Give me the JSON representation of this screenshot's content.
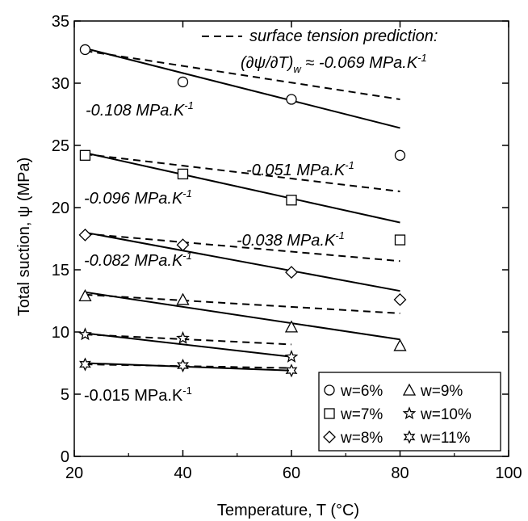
{
  "chart_data": {
    "type": "scatter",
    "xlabel": "Temperature, T (°C)",
    "ylabel": "Total suction, ψ (MPa)",
    "xlim": [
      20,
      100
    ],
    "ylim": [
      0,
      35
    ],
    "xticks": [
      20,
      40,
      60,
      80,
      100
    ],
    "yticks": [
      0,
      5,
      10,
      15,
      20,
      25,
      30,
      35
    ],
    "grid": false,
    "legend_position": "bottom-right",
    "series": [
      {
        "name": "w=6%",
        "marker": "circle",
        "x": [
          22,
          40,
          60,
          80
        ],
        "y": [
          32.7,
          30.1,
          28.7,
          24.2
        ]
      },
      {
        "name": "w=7%",
        "marker": "square",
        "x": [
          22,
          40,
          60,
          80
        ],
        "y": [
          24.2,
          22.7,
          20.6,
          17.4
        ]
      },
      {
        "name": "w=8%",
        "marker": "diamond",
        "x": [
          22,
          40,
          60,
          80
        ],
        "y": [
          17.8,
          17.0,
          14.8,
          12.6
        ]
      },
      {
        "name": "w=9%",
        "marker": "triangle",
        "x": [
          22,
          40,
          60,
          80
        ],
        "y": [
          12.9,
          12.6,
          10.4,
          8.9
        ]
      },
      {
        "name": "w=10%",
        "marker": "star",
        "x": [
          22,
          40,
          60
        ],
        "y": [
          9.8,
          9.5,
          8.0
        ]
      },
      {
        "name": "w=11%",
        "marker": "star6",
        "x": [
          22,
          40,
          60
        ],
        "y": [
          7.4,
          7.3,
          6.9
        ]
      }
    ],
    "fit_lines": [
      {
        "style": "solid",
        "x": [
          22,
          80
        ],
        "y": [
          32.8,
          26.4
        ]
      },
      {
        "style": "dashed",
        "x": [
          22,
          80
        ],
        "y": [
          32.6,
          28.7
        ]
      },
      {
        "style": "solid",
        "x": [
          22,
          80
        ],
        "y": [
          24.4,
          18.8
        ]
      },
      {
        "style": "dashed",
        "x": [
          22,
          80
        ],
        "y": [
          24.3,
          21.3
        ]
      },
      {
        "style": "solid",
        "x": [
          22,
          80
        ],
        "y": [
          18.0,
          13.3
        ]
      },
      {
        "style": "dashed",
        "x": [
          22,
          80
        ],
        "y": [
          17.9,
          15.7
        ]
      },
      {
        "style": "solid",
        "x": [
          22,
          80
        ],
        "y": [
          13.2,
          9.4
        ]
      },
      {
        "style": "dashed",
        "x": [
          22,
          80
        ],
        "y": [
          13.0,
          11.5
        ]
      },
      {
        "style": "solid",
        "x": [
          22,
          60
        ],
        "y": [
          9.9,
          8.0
        ]
      },
      {
        "style": "dashed",
        "x": [
          22,
          60
        ],
        "y": [
          9.8,
          9.0
        ]
      },
      {
        "style": "solid",
        "x": [
          22,
          60
        ],
        "y": [
          7.5,
          6.9
        ]
      },
      {
        "style": "dashed",
        "x": [
          22,
          60
        ],
        "y": [
          7.4,
          7.1
        ]
      }
    ],
    "annotations": {
      "legend_dash_label": "surface tension prediction:",
      "legend_dash_formula": "(∂ψ/∂T)",
      "legend_dash_sub": "w",
      "legend_dash_value": " ≈ -0.069 MPa.K",
      "a1_base": "-0.108 MPa.K",
      "a2_base": "-0.051 MPa.K",
      "a3_base": "-0.096 MPa.K",
      "a4_base": "-0.038 MPa.K",
      "a5_base": "-0.082 MPa.K",
      "a6_base": "-0.015 MPa.K",
      "sup": "-1"
    }
  }
}
